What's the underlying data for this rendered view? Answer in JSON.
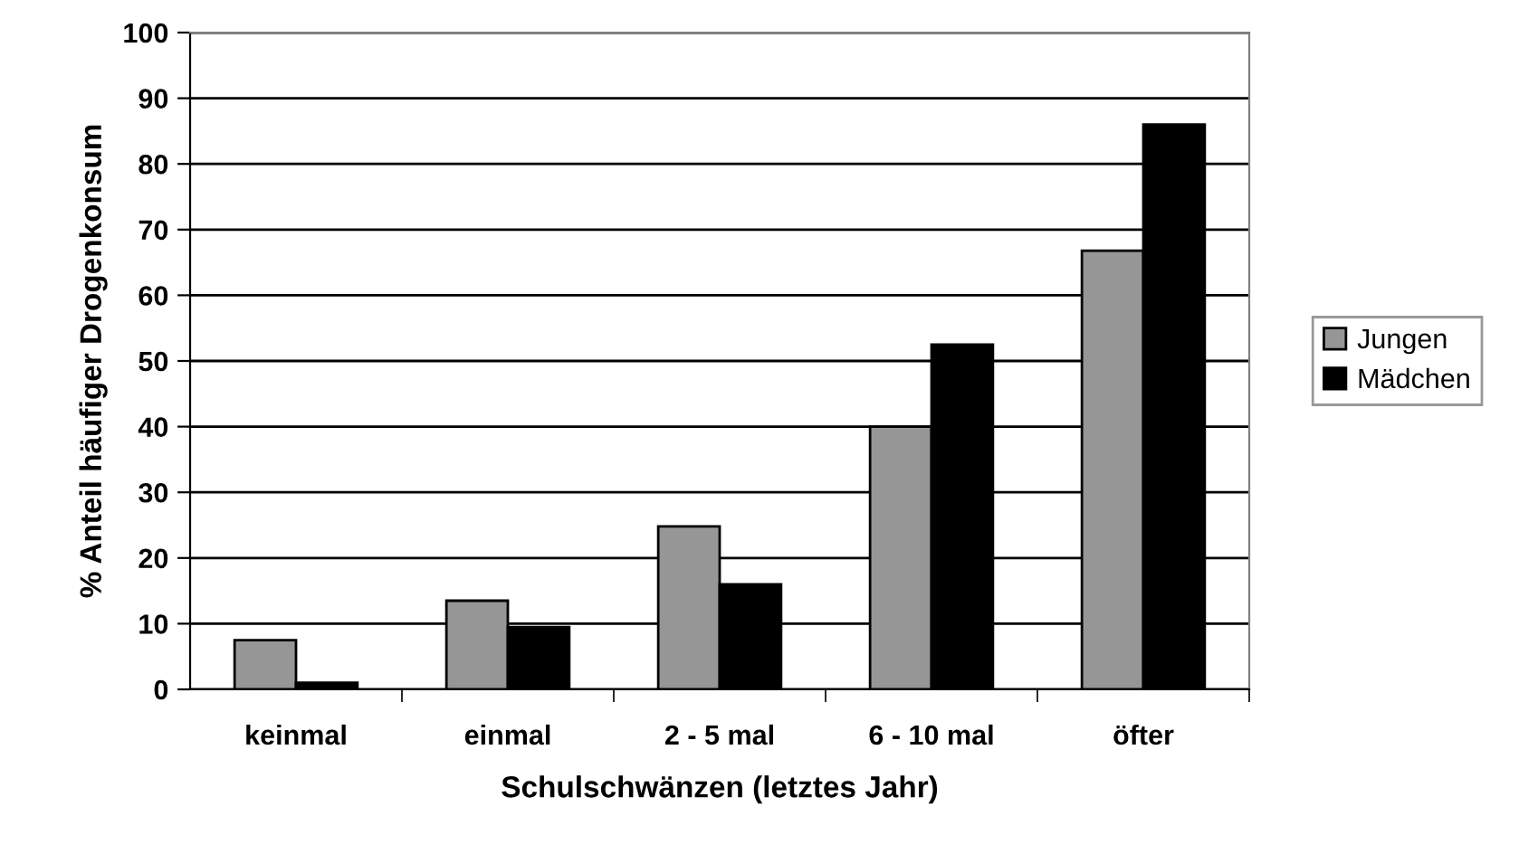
{
  "chart_data": {
    "type": "bar",
    "xlabel": "Schulschwänzen (letztes Jahr)",
    "ylabel": "% Anteil häufiger Drogenkonsum",
    "categories": [
      "keinmal",
      "einmal",
      "2 - 5 mal",
      "6 - 10 mal",
      "öfter"
    ],
    "series": [
      {
        "name": "Jungen",
        "color": "#969696",
        "values": [
          7.5,
          13.5,
          24.8,
          40,
          66.8
        ]
      },
      {
        "name": "Mädchen",
        "color": "#000000",
        "values": [
          1,
          9.5,
          16,
          52.5,
          86
        ]
      }
    ],
    "ylim": [
      0,
      100
    ],
    "yticks": [
      0,
      10,
      20,
      30,
      40,
      50,
      60,
      70,
      80,
      90,
      100
    ],
    "grid": "y",
    "legend": "right"
  }
}
